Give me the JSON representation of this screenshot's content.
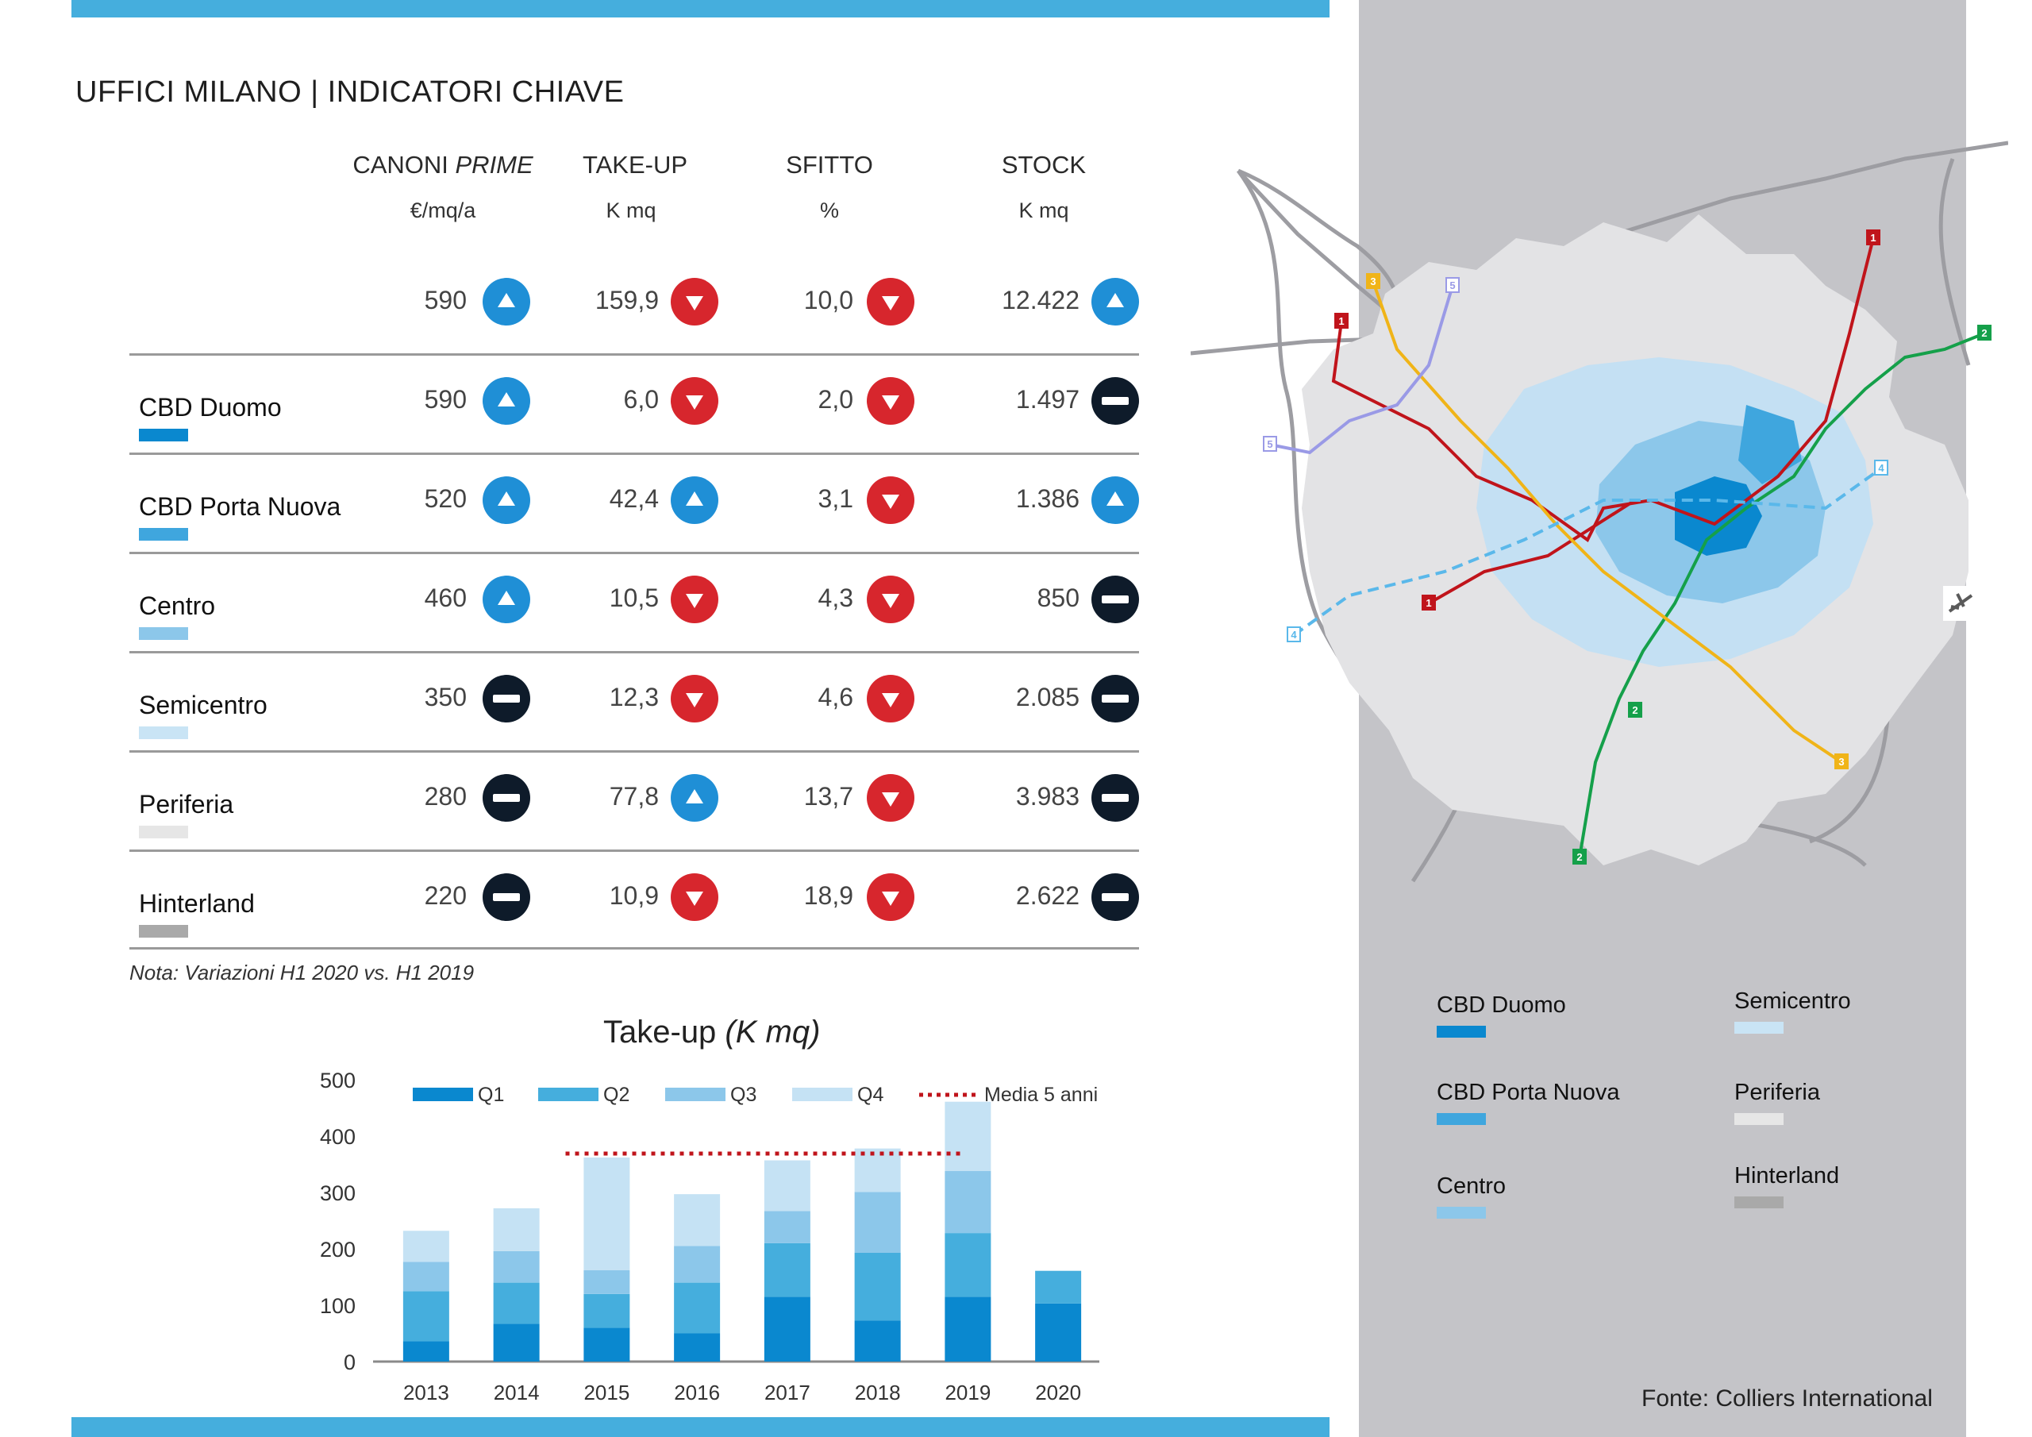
{
  "title": "UFFICI MILANO | INDICATORI CHIAVE",
  "columns": [
    {
      "head": "CANONI ",
      "head_em": "PRIME",
      "unit": "€/mq/a"
    },
    {
      "head": "TAKE-UP",
      "head_em": "",
      "unit": "K mq"
    },
    {
      "head": "SFITTO",
      "head_em": "",
      "unit": "%"
    },
    {
      "head": "STOCK",
      "head_em": "",
      "unit": "K mq"
    }
  ],
  "rows": [
    {
      "label": "",
      "color": "",
      "values": [
        "590",
        "159,9",
        "10,0",
        "12.422"
      ],
      "trend": [
        "up",
        "down",
        "down",
        "up"
      ]
    },
    {
      "label": "CBD Duomo",
      "color": "#0a88cf",
      "values": [
        "590",
        "6,0",
        "2,0",
        "1.497"
      ],
      "trend": [
        "up",
        "down",
        "down",
        "flat"
      ]
    },
    {
      "label": "CBD Porta Nuova",
      "color": "#3fa6de",
      "values": [
        "520",
        "42,4",
        "3,1",
        "1.386"
      ],
      "trend": [
        "up",
        "up",
        "down",
        "up"
      ]
    },
    {
      "label": "Centro",
      "color": "#8cc7ea",
      "values": [
        "460",
        "10,5",
        "4,3",
        "850"
      ],
      "trend": [
        "up",
        "down",
        "down",
        "flat"
      ]
    },
    {
      "label": "Semicentro",
      "color": "#c9e4f5",
      "values": [
        "350",
        "12,3",
        "4,6",
        "2.085"
      ],
      "trend": [
        "flat",
        "down",
        "down",
        "flat"
      ]
    },
    {
      "label": "Periferia",
      "color": "#e6e6e6",
      "values": [
        "280",
        "77,8",
        "13,7",
        "3.983"
      ],
      "trend": [
        "flat",
        "up",
        "down",
        "flat"
      ]
    },
    {
      "label": "Hinterland",
      "color": "#a9a9a9",
      "values": [
        "220",
        "10,9",
        "18,9",
        "2.622"
      ],
      "trend": [
        "flat",
        "down",
        "down",
        "flat"
      ]
    }
  ],
  "note": "Nota: Variazioni H1 2020 vs. H1 2019",
  "chart_title_main": "Take-up ",
  "chart_title_em": "(K mq)",
  "colors": {
    "q1": "#0a88cf",
    "q2": "#45aedd",
    "q3": "#8cc7ea",
    "q4": "#c5e2f4",
    "media": "#c0141b",
    "up": "#1f8fd6",
    "down": "#d7262d",
    "flat": "#0e1b2a"
  },
  "chart_data": {
    "type": "bar",
    "stacked": true,
    "title": "Take-up (K mq)",
    "categories": [
      "2013",
      "2014",
      "2015",
      "2016",
      "2017",
      "2018",
      "2019",
      "2020"
    ],
    "series": [
      {
        "name": "Q1",
        "values": [
          36,
          67,
          60,
          50,
          115,
          73,
          115,
          103
        ]
      },
      {
        "name": "Q2",
        "values": [
          89,
          73,
          60,
          90,
          95,
          120,
          113,
          58
        ]
      },
      {
        "name": "Q3",
        "values": [
          52,
          56,
          42,
          65,
          57,
          108,
          110,
          0
        ]
      },
      {
        "name": "Q4",
        "values": [
          55,
          76,
          200,
          92,
          90,
          77,
          123,
          0
        ]
      }
    ],
    "reference_line": {
      "name": "Media 5 anni",
      "value": 369,
      "from": "2015",
      "to": "2019"
    },
    "ylim": [
      0,
      500
    ],
    "yticks": [
      "0",
      "100",
      "200",
      "300",
      "400",
      "500"
    ],
    "legend": [
      "Q1",
      "Q2",
      "Q3",
      "Q4",
      "Media 5 anni"
    ],
    "legend_position": "top"
  },
  "map_legend": [
    {
      "label": "CBD Duomo",
      "color": "#0a88cf"
    },
    {
      "label": "Semicentro",
      "color": "#c9e4f5"
    },
    {
      "label": "CBD Porta Nuova",
      "color": "#3fa6de"
    },
    {
      "label": "Periferia",
      "color": "#e6e6e6"
    },
    {
      "label": "Centro",
      "color": "#8cc7ea"
    },
    {
      "label": "Hinterland",
      "color": "#a9a9a9"
    }
  ],
  "map_line_labels": [
    "1",
    "1",
    "1",
    "2",
    "2",
    "2",
    "3",
    "3",
    "4",
    "4",
    "5",
    "5"
  ],
  "map_line_colors": {
    "m1": "#c0141b",
    "m2": "#15a04a",
    "m3": "#f0b418",
    "m4": "#5ab8ea",
    "m5": "#9a9ae6"
  },
  "source": "Fonte: Colliers International"
}
